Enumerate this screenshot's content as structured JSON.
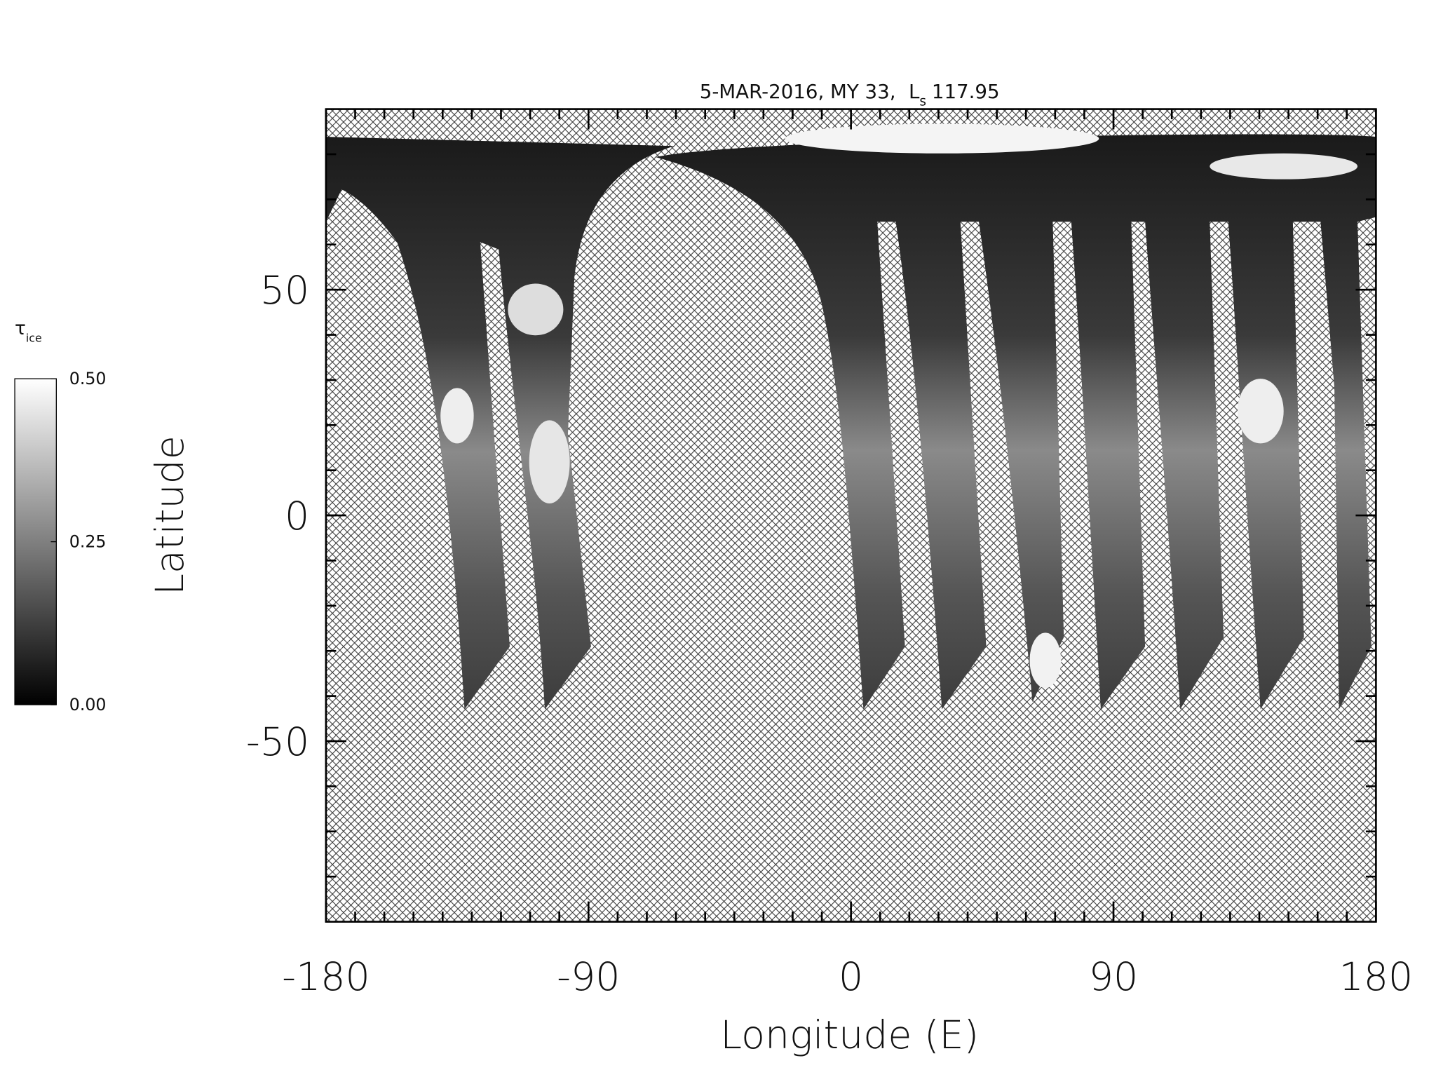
{
  "chart_data": {
    "type": "map",
    "title": {
      "text": "5-MAR-2016, MY 33,",
      "symbol": "L",
      "symbol_sub": "s",
      "value": "117.95"
    },
    "x_label": "Longitude (E)",
    "y_label": "Latitude",
    "xlim": [
      -180,
      180
    ],
    "ylim": [
      -90,
      90
    ],
    "xticks": [
      -180,
      -90,
      0,
      90,
      180
    ],
    "yticks": [
      -50,
      0,
      50
    ],
    "xminor": 9,
    "yminor": 5,
    "colorbar": {
      "label": "τ",
      "label_sub": "ice",
      "lim": [
        0,
        0.5
      ],
      "ticks": [
        {
          "value": 0,
          "label": "0.00"
        },
        {
          "value": 0.25,
          "label": "0.25"
        },
        {
          "value": 0.5,
          "label": "0.50"
        }
      ],
      "colors": [
        "#000000",
        "#ffffff"
      ]
    }
  }
}
